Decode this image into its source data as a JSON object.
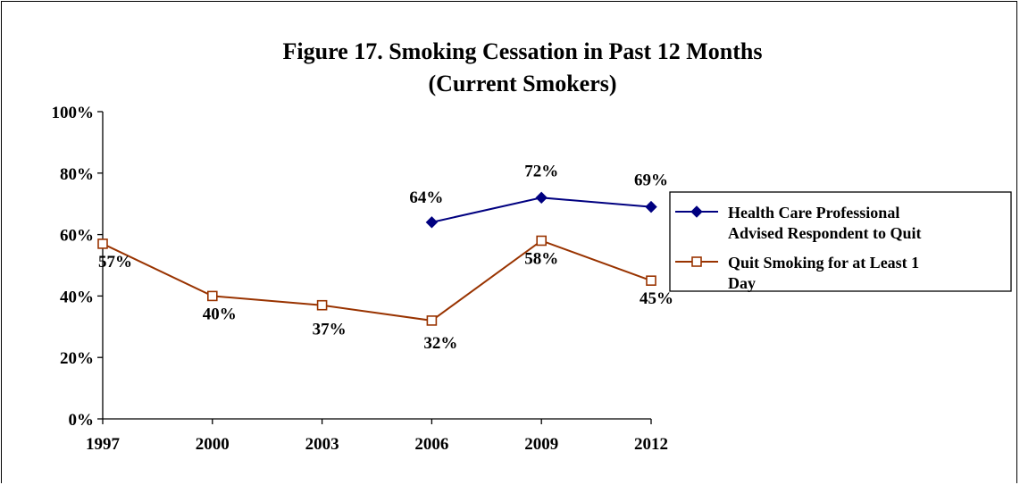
{
  "chart_data": {
    "type": "line",
    "title": "Figure 17. Smoking Cessation in Past 12 Months",
    "subtitle": "(Current Smokers)",
    "x": [
      "1997",
      "2000",
      "2003",
      "2006",
      "2009",
      "2012"
    ],
    "yticks": [
      "0%",
      "20%",
      "40%",
      "60%",
      "80%",
      "100%"
    ],
    "ylim": [
      0,
      100
    ],
    "grid": false,
    "legend_position": "right",
    "series": [
      {
        "name_lines": [
          "Health Care Professional",
          "Advised Respondent to Quit"
        ],
        "values": [
          null,
          null,
          null,
          64,
          72,
          69
        ],
        "labels": [
          null,
          null,
          null,
          "64%",
          "72%",
          "69%"
        ],
        "color": "#000080",
        "marker": "diamond"
      },
      {
        "name_lines": [
          "Quit Smoking for at Least 1",
          "Day"
        ],
        "values": [
          57,
          40,
          37,
          32,
          58,
          45
        ],
        "labels": [
          "57%",
          "40%",
          "37%",
          "32%",
          "58%",
          "45%"
        ],
        "color": "#993300",
        "marker": "square-open"
      }
    ]
  }
}
